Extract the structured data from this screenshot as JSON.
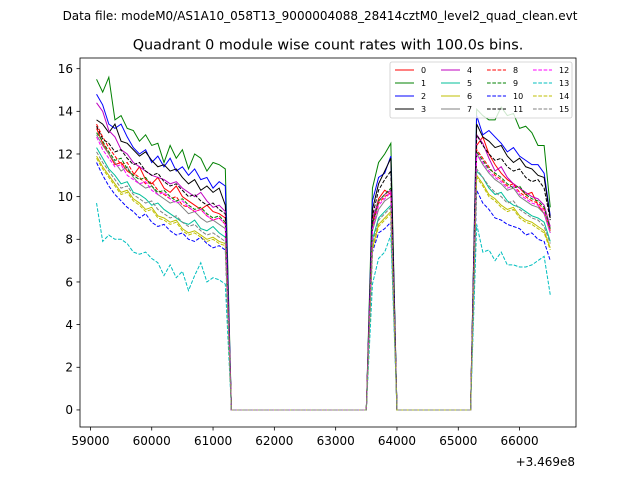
{
  "figure": {
    "supertitle": "Data file: modeM0/AS1A10_058T13_9000004088_28414cztM0_level2_quad_clean.evt"
  },
  "chart_data": {
    "type": "line",
    "title": "Quadrant 0 module wise count rates with 100.0s bins.",
    "xlabel": "",
    "ylabel": "",
    "x_offset_label": "+3.469e8",
    "xlim": [
      58830,
      66920
    ],
    "ylim": [
      -0.8,
      16.5
    ],
    "xticks": [
      59000,
      60000,
      61000,
      62000,
      63000,
      64000,
      65000,
      66000
    ],
    "xtick_labels": [
      "59000",
      "60000",
      "61000",
      "62000",
      "63000",
      "64000",
      "65000",
      "66000"
    ],
    "yticks": [
      0,
      2,
      4,
      6,
      8,
      10,
      12,
      14,
      16
    ],
    "ytick_labels": [
      "0",
      "2",
      "4",
      "6",
      "8",
      "10",
      "12",
      "14",
      "16"
    ],
    "legend_position": "top-right",
    "legend_columns": 4,
    "segments": [
      {
        "start": 59100,
        "end": 61200
      },
      {
        "start": 63600,
        "end": 63900
      },
      {
        "start": 65300,
        "end": 66500
      }
    ],
    "series": [
      {
        "name": "0",
        "color": "#ff0000",
        "dash": "solid",
        "segment_values": [
          [
            13.2,
            12.5,
            12.0,
            11.5,
            11.6,
            11.2,
            11.0,
            11.4,
            10.8,
            10.6,
            10.9,
            10.4,
            10.2,
            10.5,
            10.0,
            9.8,
            9.6,
            9.4,
            9.6,
            9.3,
            9.2,
            9.0
          ],
          [
            8.8,
            9.9,
            10.3,
            10.1
          ],
          [
            12.4,
            12.8,
            12.0,
            11.5,
            11.1,
            10.8,
            10.6,
            10.4,
            10.1,
            10.2,
            9.6,
            9.2,
            8.5
          ]
        ]
      },
      {
        "name": "1",
        "color": "#008000",
        "dash": "solid",
        "segment_values": [
          [
            15.5,
            14.9,
            15.6,
            13.6,
            13.8,
            13.2,
            13.1,
            12.6,
            12.9,
            12.4,
            12.5,
            11.6,
            12.4,
            11.8,
            12.2,
            11.3,
            12.0,
            11.8,
            11.2,
            11.6,
            11.5,
            11.3
          ],
          [
            10.4,
            11.6,
            12.0,
            12.5
          ],
          [
            14.1,
            13.8,
            13.6,
            13.6,
            14.2,
            13.8,
            13.9,
            13.2,
            13.3,
            13.0,
            12.4,
            12.4,
            9.5
          ]
        ]
      },
      {
        "name": "2",
        "color": "#0000ff",
        "dash": "solid",
        "segment_values": [
          [
            14.8,
            14.3,
            13.4,
            13.2,
            13.4,
            12.8,
            12.3,
            12.0,
            12.2,
            11.6,
            11.9,
            11.4,
            11.8,
            11.2,
            11.4,
            11.0,
            11.3,
            10.8,
            10.9,
            10.4,
            10.7,
            10.5
          ],
          [
            9.8,
            10.9,
            11.1,
            11.9
          ],
          [
            13.8,
            12.9,
            13.1,
            12.8,
            12.5,
            12.1,
            12.3,
            11.9,
            11.7,
            11.5,
            11.5,
            11.1,
            9.1
          ]
        ]
      },
      {
        "name": "3",
        "color": "#000000",
        "dash": "solid",
        "segment_values": [
          [
            13.6,
            13.4,
            13.0,
            13.4,
            12.6,
            12.5,
            12.2,
            11.9,
            12.1,
            11.7,
            11.4,
            11.5,
            11.2,
            11.3,
            10.9,
            10.6,
            10.8,
            10.3,
            10.5,
            10.2,
            10.4,
            9.6
          ],
          [
            9.4,
            10.6,
            11.2,
            11.8
          ],
          [
            13.4,
            12.8,
            12.6,
            12.3,
            12.4,
            11.9,
            11.6,
            11.8,
            11.4,
            11.3,
            11.0,
            10.9,
            9.0
          ]
        ]
      },
      {
        "name": "4",
        "color": "#bf00bf",
        "dash": "solid",
        "segment_values": [
          [
            14.4,
            14.0,
            13.1,
            12.8,
            12.2,
            12.0,
            11.6,
            11.4,
            11.2,
            11.0,
            10.9,
            10.8,
            10.6,
            10.7,
            10.4,
            10.2,
            10.0,
            10.2,
            9.8,
            9.5,
            9.6,
            9.3
          ],
          [
            9.0,
            9.8,
            10.1,
            10.3
          ],
          [
            12.9,
            12.5,
            11.8,
            11.2,
            11.4,
            10.9,
            10.6,
            10.4,
            10.2,
            10.0,
            9.9,
            9.6,
            8.6
          ]
        ]
      },
      {
        "name": "5",
        "color": "#00bf99",
        "dash": "solid",
        "segment_values": [
          [
            12.3,
            11.8,
            11.3,
            11.0,
            10.6,
            10.7,
            10.2,
            10.1,
            9.9,
            9.6,
            9.7,
            9.4,
            9.2,
            9.0,
            8.8,
            8.7,
            8.9,
            8.5,
            8.4,
            8.6,
            8.3,
            8.1
          ],
          [
            8.0,
            9.0,
            9.3,
            9.6
          ],
          [
            11.2,
            10.9,
            10.4,
            10.1,
            10.2,
            9.8,
            9.6,
            9.5,
            9.3,
            9.1,
            9.0,
            8.8,
            7.9
          ]
        ]
      },
      {
        "name": "6",
        "color": "#bfbf00",
        "dash": "solid",
        "segment_values": [
          [
            11.9,
            11.4,
            11.0,
            10.6,
            10.2,
            10.3,
            9.9,
            9.7,
            9.4,
            9.5,
            9.1,
            9.0,
            8.8,
            8.9,
            8.5,
            8.3,
            8.4,
            8.2,
            8.0,
            8.1,
            7.9,
            7.8
          ],
          [
            7.6,
            8.7,
            9.0,
            9.3
          ],
          [
            11.0,
            10.6,
            10.1,
            9.9,
            9.6,
            9.4,
            9.5,
            9.1,
            8.9,
            8.8,
            8.6,
            8.4,
            7.6
          ]
        ]
      },
      {
        "name": "7",
        "color": "#808080",
        "dash": "solid",
        "segment_values": [
          [
            12.9,
            12.4,
            12.0,
            11.6,
            11.2,
            11.4,
            10.9,
            10.6,
            10.4,
            10.5,
            10.1,
            9.9,
            9.7,
            9.8,
            9.5,
            9.2,
            9.3,
            9.0,
            8.8,
            8.9,
            8.7,
            8.5
          ],
          [
            8.4,
            9.4,
            9.8,
            10.0
          ],
          [
            12.0,
            11.5,
            11.1,
            10.8,
            10.6,
            10.3,
            10.4,
            10.0,
            9.8,
            9.6,
            9.5,
            9.2,
            8.3
          ]
        ]
      },
      {
        "name": "8",
        "color": "#ff0000",
        "dash": "dashed",
        "segment_values": [
          [
            13.4,
            12.8,
            12.3,
            11.9,
            11.5,
            11.6,
            11.1,
            10.9,
            10.6,
            10.7,
            10.3,
            10.1,
            9.9,
            10.0,
            9.6,
            9.5,
            9.3,
            9.4,
            9.1,
            8.9,
            9.0,
            8.7
          ],
          [
            8.6,
            9.7,
            10.0,
            10.2
          ],
          [
            12.2,
            11.8,
            11.4,
            11.0,
            10.8,
            10.5,
            10.6,
            10.2,
            10.0,
            9.8,
            9.7,
            9.4,
            8.4
          ]
        ]
      },
      {
        "name": "9",
        "color": "#008000",
        "dash": "dashed",
        "segment_values": [
          [
            13.0,
            12.6,
            12.1,
            11.7,
            11.8,
            11.3,
            11.0,
            10.8,
            10.9,
            10.5,
            10.2,
            10.3,
            10.0,
            9.8,
            9.9,
            9.6,
            9.4,
            9.5,
            9.2,
            9.0,
            9.1,
            8.8
          ],
          [
            8.7,
            9.8,
            10.1,
            10.4
          ],
          [
            12.1,
            11.7,
            11.3,
            11.1,
            10.9,
            10.6,
            10.4,
            10.5,
            10.1,
            9.9,
            9.8,
            9.5,
            8.5
          ]
        ]
      },
      {
        "name": "10",
        "color": "#0000ff",
        "dash": "dashed",
        "segment_values": [
          [
            11.6,
            11.0,
            10.5,
            10.1,
            9.8,
            9.5,
            9.3,
            9.0,
            9.2,
            8.8,
            8.6,
            8.7,
            8.4,
            8.2,
            8.3,
            8.0,
            7.9,
            8.1,
            7.8,
            7.6,
            7.7,
            7.5
          ],
          [
            7.4,
            8.3,
            8.5,
            8.8
          ],
          [
            10.3,
            9.7,
            9.4,
            9.0,
            8.9,
            8.7,
            8.6,
            8.5,
            8.2,
            8.3,
            8.0,
            7.9,
            7.0
          ]
        ]
      },
      {
        "name": "11",
        "color": "#000000",
        "dash": "dashed",
        "segment_values": [
          [
            13.3,
            12.7,
            12.5,
            12.1,
            12.2,
            11.8,
            11.5,
            11.6,
            11.2,
            11.0,
            11.1,
            10.7,
            10.5,
            10.6,
            10.3,
            10.0,
            10.1,
            9.8,
            9.6,
            9.7,
            9.4,
            9.2
          ],
          [
            9.1,
            10.3,
            10.8,
            11.2
          ],
          [
            12.9,
            12.4,
            12.0,
            11.7,
            11.8,
            11.4,
            11.2,
            11.3,
            10.9,
            10.7,
            10.8,
            10.4,
            8.9
          ]
        ]
      },
      {
        "name": "12",
        "color": "#ff00ff",
        "dash": "dashed",
        "segment_values": [
          [
            12.8,
            12.2,
            11.8,
            11.4,
            11.5,
            11.0,
            10.8,
            10.6,
            10.7,
            10.3,
            10.1,
            10.2,
            9.9,
            9.7,
            9.8,
            9.5,
            9.3,
            9.4,
            9.1,
            8.9,
            9.0,
            8.7
          ],
          [
            8.5,
            9.6,
            9.9,
            10.2
          ],
          [
            12.0,
            11.6,
            11.2,
            10.9,
            10.7,
            10.4,
            10.5,
            10.1,
            9.9,
            9.7,
            9.6,
            9.3,
            8.3
          ]
        ]
      },
      {
        "name": "13",
        "color": "#00bfbf",
        "dash": "dashed",
        "segment_values": [
          [
            9.7,
            7.9,
            8.2,
            8.0,
            8.0,
            7.8,
            7.4,
            7.3,
            7.4,
            7.1,
            6.9,
            6.3,
            6.8,
            6.2,
            6.5,
            5.6,
            6.3,
            6.9,
            6.0,
            6.2,
            6.1,
            5.9
          ],
          [
            5.9,
            7.1,
            7.4,
            8.2
          ],
          [
            8.7,
            7.4,
            7.5,
            7.0,
            7.4,
            6.8,
            6.8,
            6.7,
            6.7,
            6.8,
            7.0,
            7.2,
            5.4
          ]
        ]
      },
      {
        "name": "14",
        "color": "#bfbf00",
        "dash": "dashed",
        "segment_values": [
          [
            11.8,
            11.3,
            10.9,
            10.5,
            10.1,
            10.2,
            9.8,
            9.6,
            9.3,
            9.4,
            9.0,
            8.9,
            8.7,
            8.8,
            8.4,
            8.2,
            8.3,
            8.1,
            7.9,
            8.0,
            7.8,
            7.7
          ],
          [
            7.5,
            8.6,
            8.9,
            9.2
          ],
          [
            10.9,
            10.5,
            10.0,
            9.8,
            9.5,
            9.3,
            9.4,
            9.0,
            8.8,
            8.7,
            8.5,
            8.3,
            7.5
          ]
        ]
      },
      {
        "name": "15",
        "color": "#808080",
        "dash": "dashed",
        "segment_values": [
          [
            12.1,
            11.6,
            11.2,
            10.8,
            10.4,
            10.5,
            10.1,
            9.9,
            9.7,
            9.8,
            9.4,
            9.2,
            9.0,
            9.1,
            8.8,
            8.6,
            8.7,
            8.4,
            8.2,
            8.3,
            8.1,
            7.9
          ],
          [
            7.8,
            8.9,
            9.2,
            9.5
          ],
          [
            11.3,
            10.9,
            10.5,
            10.2,
            10.0,
            9.7,
            9.8,
            9.4,
            9.2,
            9.0,
            8.9,
            8.6,
            7.8
          ]
        ]
      }
    ]
  }
}
